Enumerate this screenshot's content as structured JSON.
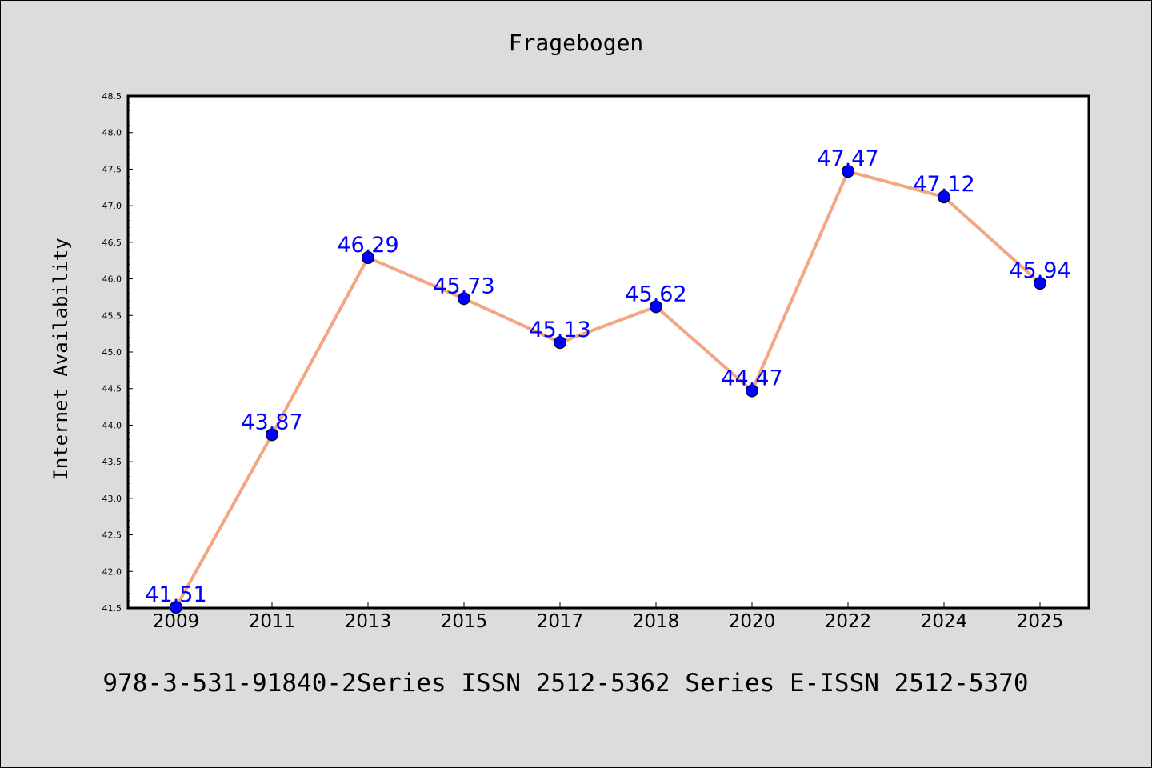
{
  "chart_data": {
    "type": "line",
    "title": "Fragebogen",
    "ylabel": "Internet Availability",
    "xlabel": "",
    "categories": [
      "2009",
      "2011",
      "2013",
      "2015",
      "2017",
      "2018",
      "2020",
      "2022",
      "2024",
      "2025"
    ],
    "series": [
      {
        "values": [
          41.51,
          43.87,
          46.29,
          45.73,
          45.13,
          45.62,
          44.47,
          47.47,
          47.12,
          45.94
        ],
        "line_color": "#f4a582",
        "marker_color": "#0000ff",
        "label_color": "#0000ff"
      }
    ],
    "data_labels": [
      "41.51",
      "43.87",
      "46.29",
      "45.73",
      "45.13",
      "45.62",
      "44.47",
      "47.47",
      "47.12",
      "45.94"
    ],
    "ylim": [
      41.5,
      48.5
    ],
    "yticks": [
      "41.5",
      "42.0",
      "42.5",
      "43.0",
      "43.5",
      "44.0",
      "44.5",
      "45.0",
      "45.5",
      "46.0",
      "46.5",
      "47.0",
      "47.5",
      "48.0",
      "48.5"
    ],
    "grid": false,
    "legend": "none"
  },
  "footer": "978-3-531-91840-2Series ISSN 2512-5362 Series E-ISSN 2512-5370",
  "colors": {
    "background": "#dcdcdc",
    "plot_background": "#ffffff",
    "line": "#f4a582",
    "marker": "#0000ff"
  }
}
